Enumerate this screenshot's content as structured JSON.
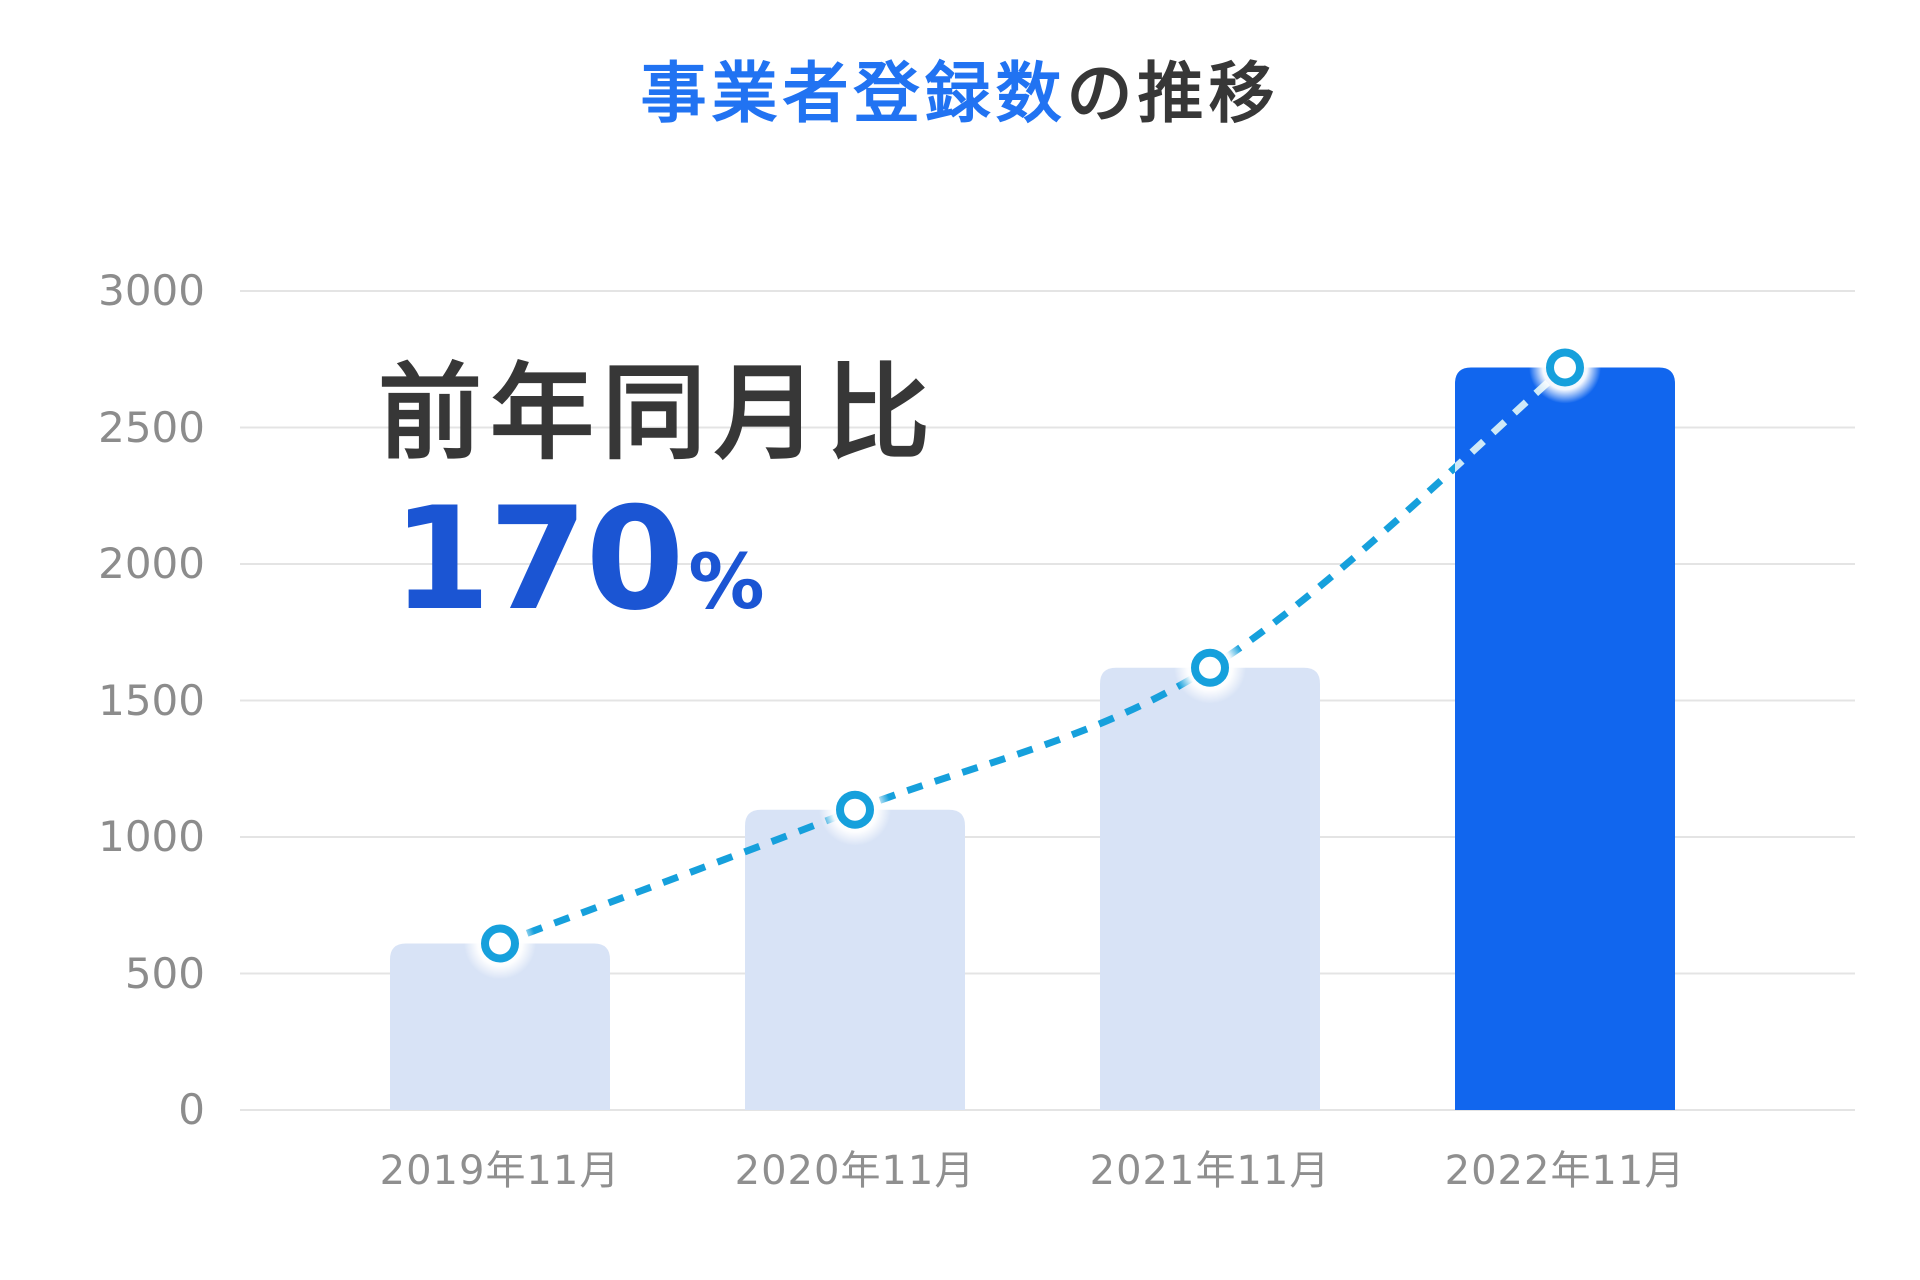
{
  "title": {
    "highlight": "事業者登録数",
    "suffix": "の推移"
  },
  "annotation": {
    "label": "前年同月比",
    "value": "170",
    "unit": "%"
  },
  "chart_data": {
    "type": "bar",
    "title": "事業者登録数の推移",
    "categories": [
      "2019年11月",
      "2020年11月",
      "2021年11月",
      "2022年11月"
    ],
    "values": [
      610,
      1100,
      1620,
      2720
    ],
    "overlay_line": {
      "type": "line",
      "style": "dashed",
      "marker": "open-circle",
      "values": [
        610,
        1100,
        1620,
        2720
      ]
    },
    "highlight_index": 3,
    "highlight_note": "前年同月比170%",
    "y_ticks": [
      0,
      500,
      1000,
      1500,
      2000,
      2500,
      3000
    ],
    "ylim": [
      0,
      3000
    ],
    "xlabel": "",
    "ylabel": "",
    "grid": true,
    "legend": false
  },
  "colors": {
    "title_blue": "#2173f2",
    "accent_blue": "#1b55d3",
    "annotation_dark": "#373737",
    "bar_light": "#d8e3f6",
    "bar_dark": "#1166ee",
    "line_cyan": "#16a0dc",
    "line_on_dark_bar": "#cfe9f8",
    "marker_fill": "#ffffff",
    "grid": "#e4e4e4",
    "tick_text": "#8c8c8c",
    "label_text": "#8f8f8f",
    "background": "#ffffff"
  }
}
